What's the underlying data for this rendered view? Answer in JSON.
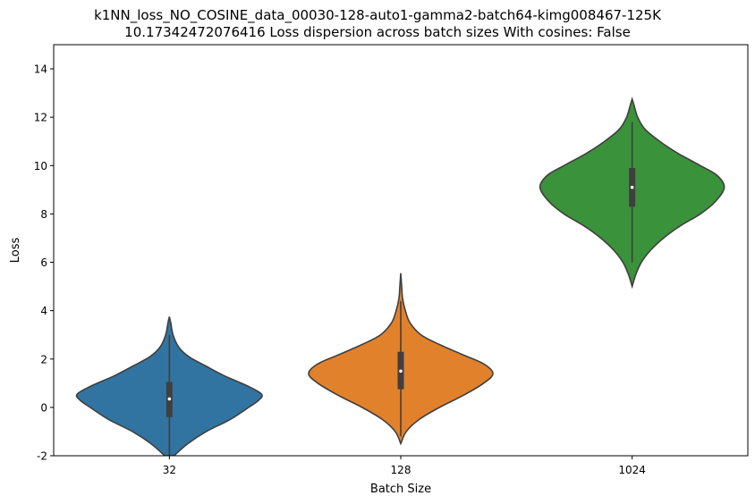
{
  "chart_data": {
    "type": "violin",
    "title_line1": "k1NN_loss_NO_COSINE_data_00030-128-auto1-gamma2-batch64-kimg008467-125K",
    "title_line2": "10.17342472076416 Loss dispersion across batch sizes With cosines: False",
    "xlabel": "Batch Size",
    "ylabel": "Loss",
    "ylim": [
      -2,
      15
    ],
    "yticks": [
      -2,
      0,
      2,
      4,
      6,
      8,
      10,
      12,
      14
    ],
    "categories": [
      "32",
      "128",
      "1024"
    ],
    "grid": false,
    "legend": "none",
    "series": [
      {
        "category": "32",
        "color": "#3274a1",
        "median": 0.35,
        "q1": -0.4,
        "q3": 1.05,
        "whisker_low": -2.0,
        "whisker_high": 3.0,
        "min": -2.0,
        "max": 3.75,
        "density": [
          [
            -2.0,
            0.05
          ],
          [
            -1.5,
            0.2
          ],
          [
            -1.0,
            0.4
          ],
          [
            -0.5,
            0.66
          ],
          [
            0.0,
            0.86
          ],
          [
            0.3,
            0.97
          ],
          [
            0.55,
            1.0
          ],
          [
            0.9,
            0.84
          ],
          [
            1.3,
            0.6
          ],
          [
            1.7,
            0.4
          ],
          [
            2.1,
            0.21
          ],
          [
            2.5,
            0.1
          ],
          [
            3.0,
            0.04
          ],
          [
            3.5,
            0.015
          ],
          [
            3.75,
            0.0
          ]
        ]
      },
      {
        "category": "128",
        "color": "#e1812c",
        "median": 1.5,
        "q1": 0.75,
        "q3": 2.3,
        "whisker_low": -1.2,
        "whisker_high": 4.4,
        "min": -1.5,
        "max": 5.55,
        "density": [
          [
            -1.5,
            0.0
          ],
          [
            -1.0,
            0.06
          ],
          [
            -0.5,
            0.2
          ],
          [
            0.0,
            0.42
          ],
          [
            0.5,
            0.68
          ],
          [
            1.0,
            0.9
          ],
          [
            1.4,
            1.0
          ],
          [
            1.8,
            0.9
          ],
          [
            2.2,
            0.66
          ],
          [
            2.6,
            0.42
          ],
          [
            3.0,
            0.22
          ],
          [
            3.5,
            0.1
          ],
          [
            4.0,
            0.05
          ],
          [
            4.5,
            0.02
          ],
          [
            5.0,
            0.01
          ],
          [
            5.55,
            0.0
          ]
        ]
      },
      {
        "category": "1024",
        "color": "#3a923a",
        "median": 9.1,
        "q1": 8.3,
        "q3": 9.9,
        "whisker_low": 6.0,
        "whisker_high": 11.8,
        "min": 5.0,
        "max": 12.75,
        "density": [
          [
            5.0,
            0.0
          ],
          [
            5.5,
            0.04
          ],
          [
            6.0,
            0.1
          ],
          [
            6.5,
            0.2
          ],
          [
            7.0,
            0.34
          ],
          [
            7.5,
            0.52
          ],
          [
            8.0,
            0.74
          ],
          [
            8.5,
            0.9
          ],
          [
            9.1,
            1.0
          ],
          [
            9.6,
            0.92
          ],
          [
            10.0,
            0.74
          ],
          [
            10.5,
            0.5
          ],
          [
            11.0,
            0.3
          ],
          [
            11.5,
            0.14
          ],
          [
            12.0,
            0.06
          ],
          [
            12.5,
            0.02
          ],
          [
            12.75,
            0.0
          ]
        ]
      }
    ]
  }
}
